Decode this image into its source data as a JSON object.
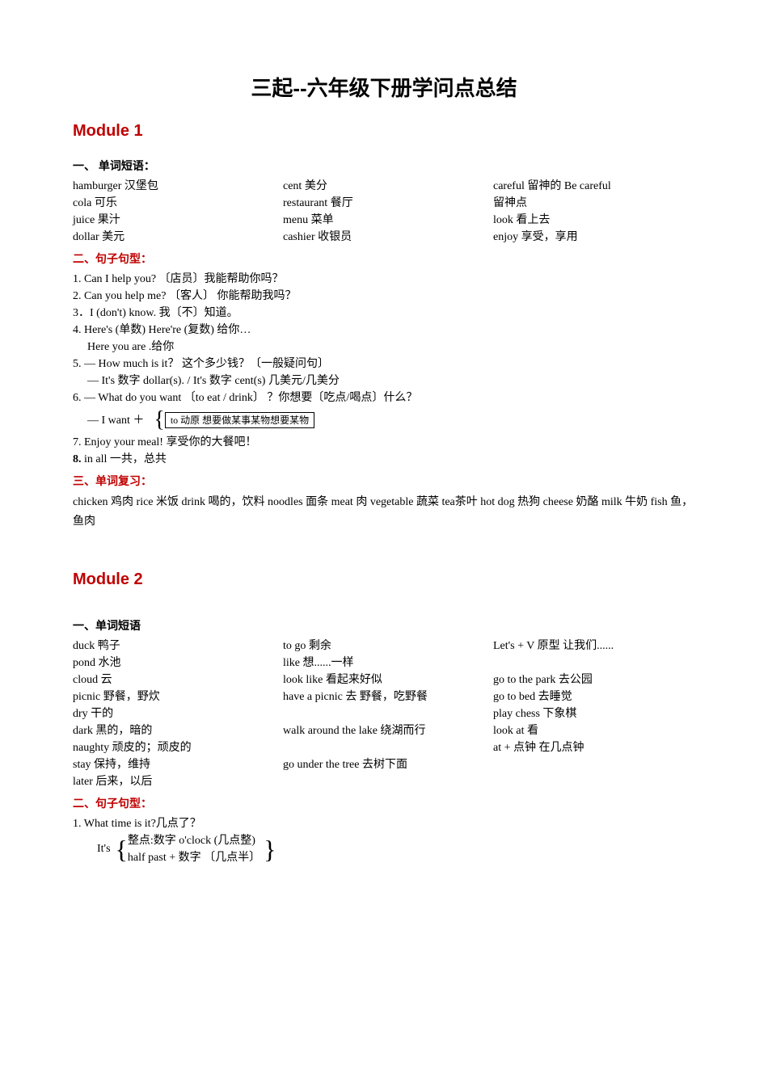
{
  "title": "三起--六年级下册学问点总结",
  "module1": {
    "heading": "Module 1",
    "section1_heading": "一、 单词短语：",
    "vocab": {
      "col1": [
        "hamburger 汉堡包",
        "cola 可乐",
        "juice 果汁",
        "dollar 美元"
      ],
      "col2": [
        "cent 美分",
        "restaurant 餐厅",
        "menu 菜单",
        "cashier 收银员"
      ],
      "col3": [
        "careful 留神的     Be careful",
        "留神点",
        "look 看上去",
        "enjoy 享受，享用"
      ]
    },
    "section2_heading": "二、句子句型：",
    "sentences": {
      "s1": "1.   Can I help you? 〔店员〕我能帮助你吗？",
      "s2": "2.   Can you help me? 〔客人〕 你能帮助我吗？",
      "s3": "3．I (don't) know.        我〔不〕知道。",
      "s4": "4. Here's (单数)      Here're (复数)    给你…",
      "s4b": "Here you are .给你",
      "s5": "5. — How much is it？       这个多少钱？〔一般疑问句〕",
      "s5b": "— It's 数字 dollar(s).   / It's 数字 cent(s)    几美元/几美分",
      "s6": "6. — What do you want 〔to eat / drink〕 ？你想要〔吃点/喝点〕什么？",
      "s6b_prefix": "—   I want ＋",
      "s6b_box": "to 动原 想要做某事某物想要某物",
      "s7": "7.   Enjoy your meal!     享受你的大餐吧！",
      "s8_prefix": "8.",
      "s8": "  in all    一共，总共"
    },
    "section3_heading": "三、单词复习：",
    "review": "chicken 鸡肉   rice 米饭   drink 喝的，饮料   noodles   面条 meat 肉   vegetable 蔬菜         tea茶叶      hot dog 热狗   cheese 奶酪    milk 牛奶   fish   鱼，鱼肉"
  },
  "module2": {
    "heading": "Module 2",
    "section1_heading": "一、单词短语",
    "vocab": {
      "col1": [
        "duck 鸭子",
        "pond 水池",
        "cloud 云",
        "picnic 野餐，野炊",
        "dry 干的",
        "dark 黑的，暗的",
        "naughty 顽皮的；顽皮的",
        "stay 保持，维持",
        "later 后来，以后"
      ],
      "col2": [
        "to go 剩余",
        "like 想......一样",
        "      look like 看起来好似",
        "have a picnic   去 野餐，吃野餐",
        "",
        "walk around   the lake      绕湖而行",
        "",
        "go under the tree         去树下面",
        ""
      ],
      "col3": [
        "Let's  + V 原型              让我们......",
        "",
        "go to the park   去公园",
        "go to bed 去睡觉",
        "play chess  下象棋",
        "look at       看",
        "at + 点钟     在几点钟"
      ]
    },
    "section2_heading": "二、句子句型：",
    "sentences": {
      "s1": "1.   What time is it?几点了？",
      "s1b_prefix": "It's",
      "s1b_line1": "整点:数字  o'clock     (几点整)",
      "s1b_line2": "half past + 数字       〔几点半〕"
    }
  }
}
